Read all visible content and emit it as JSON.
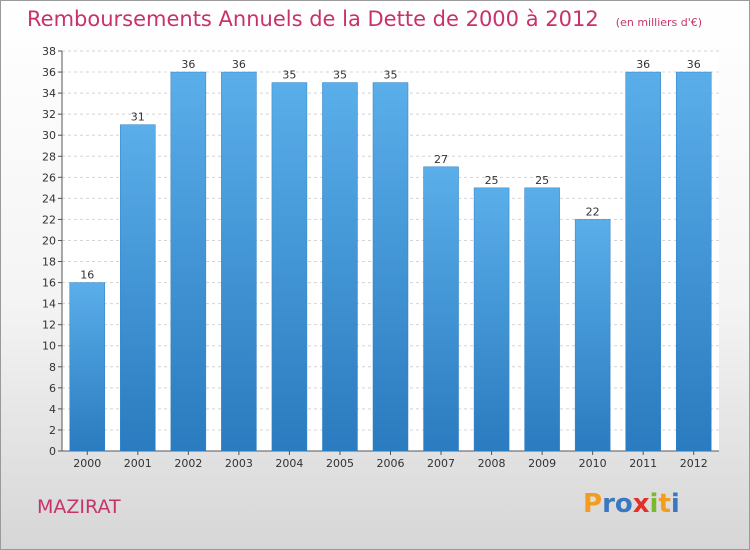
{
  "chart_data": {
    "type": "bar",
    "title": "Remboursements Annuels de la Dette de 2000 à 2012",
    "subtitle": "(en milliers d'€)",
    "xlabel": "",
    "ylabel": "",
    "categories": [
      "2000",
      "2001",
      "2002",
      "2003",
      "2004",
      "2005",
      "2006",
      "2007",
      "2008",
      "2009",
      "2010",
      "2011",
      "2012"
    ],
    "values": [
      16,
      31,
      36,
      36,
      35,
      35,
      35,
      27,
      25,
      25,
      22,
      36,
      36
    ],
    "ylim": [
      0,
      38
    ],
    "ytick_step": 2,
    "grid": true,
    "legend": "none",
    "bar_color": "#3d8fd6"
  },
  "commune": "MAZIRAT",
  "logo": {
    "letters": [
      "P",
      "r",
      "o",
      "x",
      "i",
      "t",
      "i"
    ],
    "colors": [
      "#f39c1f",
      "#3b78c2",
      "#3b78c2",
      "#e3302b",
      "#7cb82f",
      "#f39c1f",
      "#3b78c2"
    ]
  }
}
